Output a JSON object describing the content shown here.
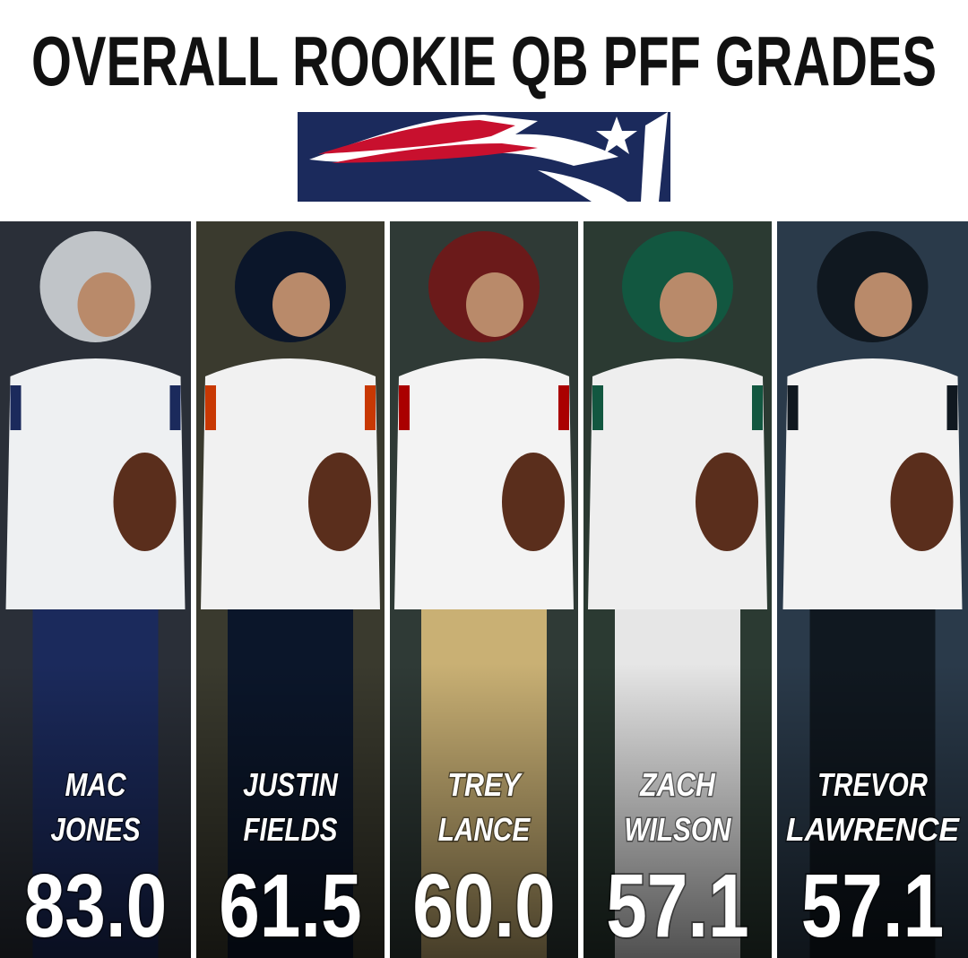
{
  "header": {
    "title": "OVERALL ROOKIE QB PFF GRADES"
  },
  "players": [
    {
      "first": "MAC",
      "last": "JONES",
      "grade": "83.0"
    },
    {
      "first": "JUSTIN",
      "last": "FIELDS",
      "grade": "61.5"
    },
    {
      "first": "TREY",
      "last": "LANCE",
      "grade": "60.0"
    },
    {
      "first": "ZACH",
      "last": "WILSON",
      "grade": "57.1"
    },
    {
      "first": "TREVOR",
      "last": "LAWRENCE",
      "grade": "57.1"
    }
  ]
}
